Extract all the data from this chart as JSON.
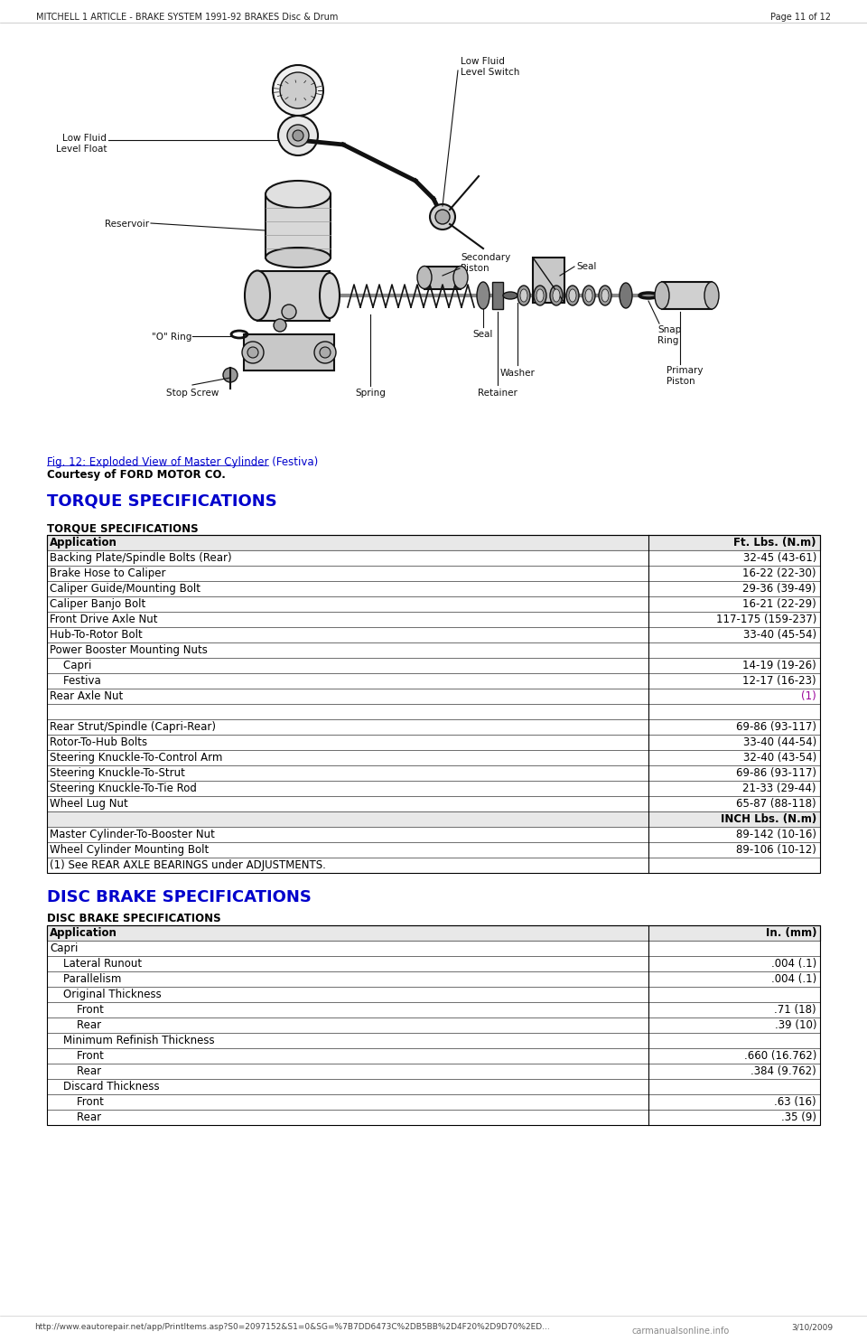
{
  "header_left": "MITCHELL 1 ARTICLE - BRAKE SYSTEM 1991-92 BRAKES Disc & Drum",
  "header_right": "Page 11 of 12",
  "fig_caption": "Fig. 12: Exploded View of Master Cylinder (Festiva)",
  "fig_courtesy": "Courtesy of FORD MOTOR CO.",
  "torque_heading": "TORQUE SPECIFICATIONS",
  "torque_table_title": "TORQUE SPECIFICATIONS",
  "torque_col1": "Application",
  "torque_col2": "Ft. Lbs. (N.m)",
  "torque_rows": [
    [
      "Backing Plate/Spindle Bolts (Rear)",
      "32-45 (43-61)"
    ],
    [
      "Brake Hose to Caliper",
      "16-22 (22-30)"
    ],
    [
      "Caliper Guide/Mounting Bolt",
      "29-36 (39-49)"
    ],
    [
      "Caliper Banjo Bolt",
      "16-21 (22-29)"
    ],
    [
      "Front Drive Axle Nut",
      "117-175 (159-237)"
    ],
    [
      "Hub-To-Rotor Bolt",
      "33-40 (45-54)"
    ],
    [
      "Power Booster Mounting Nuts",
      ""
    ],
    [
      "    Capri",
      "14-19 (19-26)"
    ],
    [
      "    Festiva",
      "12-17 (16-23)"
    ],
    [
      "Rear Axle Nut",
      "(1)"
    ],
    [
      "",
      ""
    ],
    [
      "Rear Strut/Spindle (Capri-Rear)",
      "69-86 (93-117)"
    ],
    [
      "Rotor-To-Hub Bolts",
      "33-40 (44-54)"
    ],
    [
      "Steering Knuckle-To-Control Arm",
      "32-40 (43-54)"
    ],
    [
      "Steering Knuckle-To-Strut",
      "69-86 (93-117)"
    ],
    [
      "Steering Knuckle-To-Tie Rod",
      "21-33 (29-44)"
    ],
    [
      "Wheel Lug Nut",
      "65-87 (88-118)"
    ],
    [
      "",
      "INCH Lbs. (N.m)"
    ],
    [
      "Master Cylinder-To-Booster Nut",
      "89-142 (10-16)"
    ],
    [
      "Wheel Cylinder Mounting Bolt",
      "89-106 (10-12)"
    ],
    [
      "(1) See REAR AXLE BEARINGS under ADJUSTMENTS.",
      ""
    ]
  ],
  "disc_heading": "DISC BRAKE SPECIFICATIONS",
  "disc_table_title": "DISC BRAKE SPECIFICATIONS",
  "disc_rows": [
    [
      "Application",
      "In. (mm)"
    ],
    [
      "Capri",
      ""
    ],
    [
      "    Lateral Runout",
      ".004 (.1)"
    ],
    [
      "    Parallelism",
      ".004 (.1)"
    ],
    [
      "    Original Thickness",
      ""
    ],
    [
      "        Front",
      ".71 (18)"
    ],
    [
      "        Rear",
      ".39 (10)"
    ],
    [
      "    Minimum Refinish Thickness",
      ""
    ],
    [
      "        Front",
      ".660 (16.762)"
    ],
    [
      "        Rear",
      ".384 (9.762)"
    ],
    [
      "    Discard Thickness",
      ""
    ],
    [
      "        Front",
      ".63 (16)"
    ],
    [
      "        Rear",
      ".35 (9)"
    ]
  ],
  "footer_url": "http://www.eautorepair.net/app/PrintItems.asp?S0=2097152&S1=0&SG=%7B7DD6473C%2DB5BB%2D4F20%2D9D70%2ED...",
  "footer_date": "3/10/2009",
  "bg_color": "#ffffff",
  "link_color": "#0000cc",
  "torque_heading_color": "#0000cc",
  "disc_heading_color": "#0000cc",
  "note_color": "#990099"
}
